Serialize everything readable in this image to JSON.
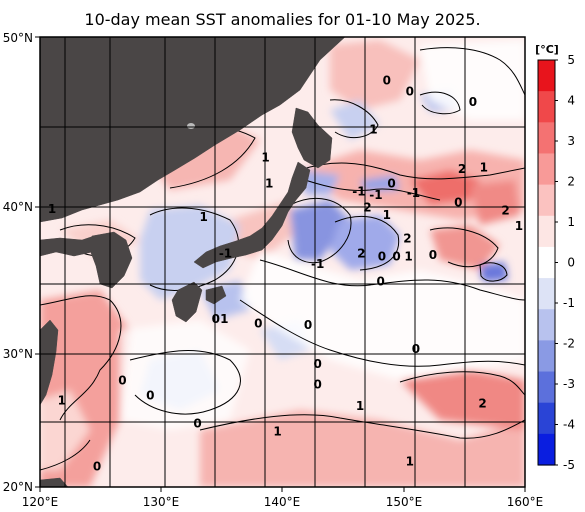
{
  "title": "10-day mean SST anomalies for 01-10 May 2025.",
  "map": {
    "lon_range": [
      120,
      160
    ],
    "lat_range": [
      20,
      50
    ],
    "lon_ticks": [
      "120°E",
      "130°E",
      "140°E",
      "150°E",
      "160°E"
    ],
    "lat_ticks": [
      "20°N",
      "30°N",
      "40°N",
      "50°N"
    ],
    "land_color": "#4a4646",
    "grid": true,
    "contour_labels": [
      {
        "text": "0",
        "lon": 148.6,
        "lat": 47.6
      },
      {
        "text": "0",
        "lon": 150.5,
        "lat": 47.0
      },
      {
        "text": "0",
        "lon": 155.7,
        "lat": 46.4
      },
      {
        "text": "1",
        "lon": 147.5,
        "lat": 44.8
      },
      {
        "text": "1",
        "lon": 138.6,
        "lat": 43.1
      },
      {
        "text": "1",
        "lon": 138.9,
        "lat": 41.5
      },
      {
        "text": "2",
        "lon": 154.8,
        "lat": 42.4
      },
      {
        "text": "1",
        "lon": 156.6,
        "lat": 42.5
      },
      {
        "text": "-1",
        "lon": 146.3,
        "lat": 41.0
      },
      {
        "text": "0",
        "lon": 149.0,
        "lat": 41.5
      },
      {
        "text": "-1",
        "lon": 150.8,
        "lat": 40.9
      },
      {
        "text": "-1",
        "lon": 147.7,
        "lat": 40.8
      },
      {
        "text": "0",
        "lon": 154.5,
        "lat": 40.3
      },
      {
        "text": "2",
        "lon": 147.0,
        "lat": 40.0
      },
      {
        "text": "1",
        "lon": 121.0,
        "lat": 39.9
      },
      {
        "text": "2",
        "lon": 158.4,
        "lat": 39.8
      },
      {
        "text": "1",
        "lon": 133.5,
        "lat": 39.4
      },
      {
        "text": "1",
        "lon": 148.6,
        "lat": 39.5
      },
      {
        "text": "1",
        "lon": 159.5,
        "lat": 38.8
      },
      {
        "text": "2",
        "lon": 150.3,
        "lat": 38.0
      },
      {
        "text": "-1",
        "lon": 135.3,
        "lat": 37.0
      },
      {
        "text": "2",
        "lon": 146.5,
        "lat": 37.0
      },
      {
        "text": "0",
        "lon": 148.2,
        "lat": 36.8
      },
      {
        "text": "0",
        "lon": 149.4,
        "lat": 36.8
      },
      {
        "text": "1",
        "lon": 150.4,
        "lat": 36.8
      },
      {
        "text": "0",
        "lon": 152.4,
        "lat": 36.9
      },
      {
        "text": "-1",
        "lon": 142.9,
        "lat": 36.3
      },
      {
        "text": "0",
        "lon": 148.1,
        "lat": 35.1
      },
      {
        "text": "0",
        "lon": 134.5,
        "lat": 32.5
      },
      {
        "text": "1",
        "lon": 135.2,
        "lat": 32.5
      },
      {
        "text": "0",
        "lon": 138.0,
        "lat": 32.2
      },
      {
        "text": "0",
        "lon": 142.1,
        "lat": 32.1
      },
      {
        "text": "0",
        "lon": 151.0,
        "lat": 30.4
      },
      {
        "text": "0",
        "lon": 142.9,
        "lat": 29.3
      },
      {
        "text": "0",
        "lon": 126.8,
        "lat": 28.1
      },
      {
        "text": "0",
        "lon": 142.9,
        "lat": 27.8
      },
      {
        "text": "0",
        "lon": 129.1,
        "lat": 27.0
      },
      {
        "text": "1",
        "lon": 121.8,
        "lat": 26.6
      },
      {
        "text": "1",
        "lon": 146.4,
        "lat": 26.2
      },
      {
        "text": "2",
        "lon": 156.5,
        "lat": 26.4
      },
      {
        "text": "0",
        "lon": 133.0,
        "lat": 24.9
      },
      {
        "text": "1",
        "lon": 139.6,
        "lat": 24.3
      },
      {
        "text": "0",
        "lon": 124.7,
        "lat": 21.6
      },
      {
        "text": "1",
        "lon": 150.5,
        "lat": 22.0
      }
    ]
  },
  "colorbar": {
    "unit": "[°C]",
    "ticks": [
      "5",
      "4",
      "3",
      "2",
      "1",
      "0",
      "-1",
      "-2",
      "-3",
      "-4",
      "-5"
    ],
    "colors_top_to_bottom": [
      "#e8141c",
      "#f0484a",
      "#f47272",
      "#f89a98",
      "#fbc2c0",
      "#fde6e4",
      "#ffffff",
      "#dde3f6",
      "#b8c2ee",
      "#8a9ae4",
      "#5c70dc",
      "#2a44d6",
      "#0a1ee0"
    ]
  }
}
